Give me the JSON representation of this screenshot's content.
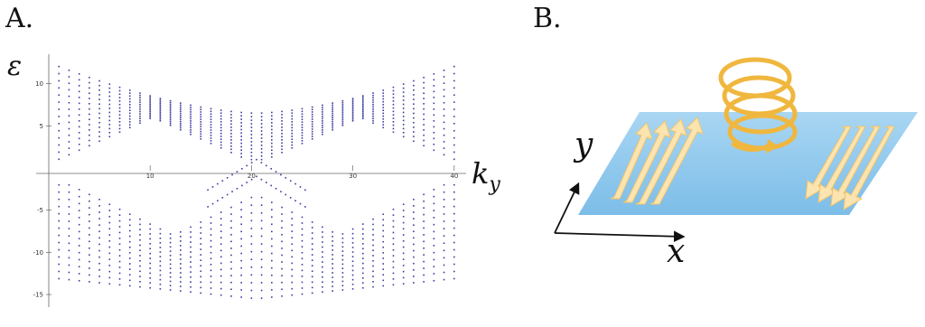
{
  "panel_a": {
    "label": "A.",
    "chart_data": {
      "type": "scatter",
      "ylabel": "ε",
      "xlabel": "k_y",
      "xlabel_base": "k",
      "xlabel_sub": "y",
      "x_ticks": [
        "10",
        "20",
        "30",
        "40"
      ],
      "y_ticks": [
        "10",
        "5",
        "-5",
        "-10",
        "-15"
      ],
      "xlim": [
        0,
        41
      ],
      "ylim": [
        -16.5,
        13.5
      ],
      "series_color": "#3a3aa0",
      "description_only_points": []
    }
  },
  "panel_b": {
    "label": "B.",
    "axis_x": "x",
    "axis_y": "y",
    "colors": {
      "plane": "#8ec9ef",
      "arrows": "#f6d38a",
      "helix": "#f0b73f"
    }
  }
}
